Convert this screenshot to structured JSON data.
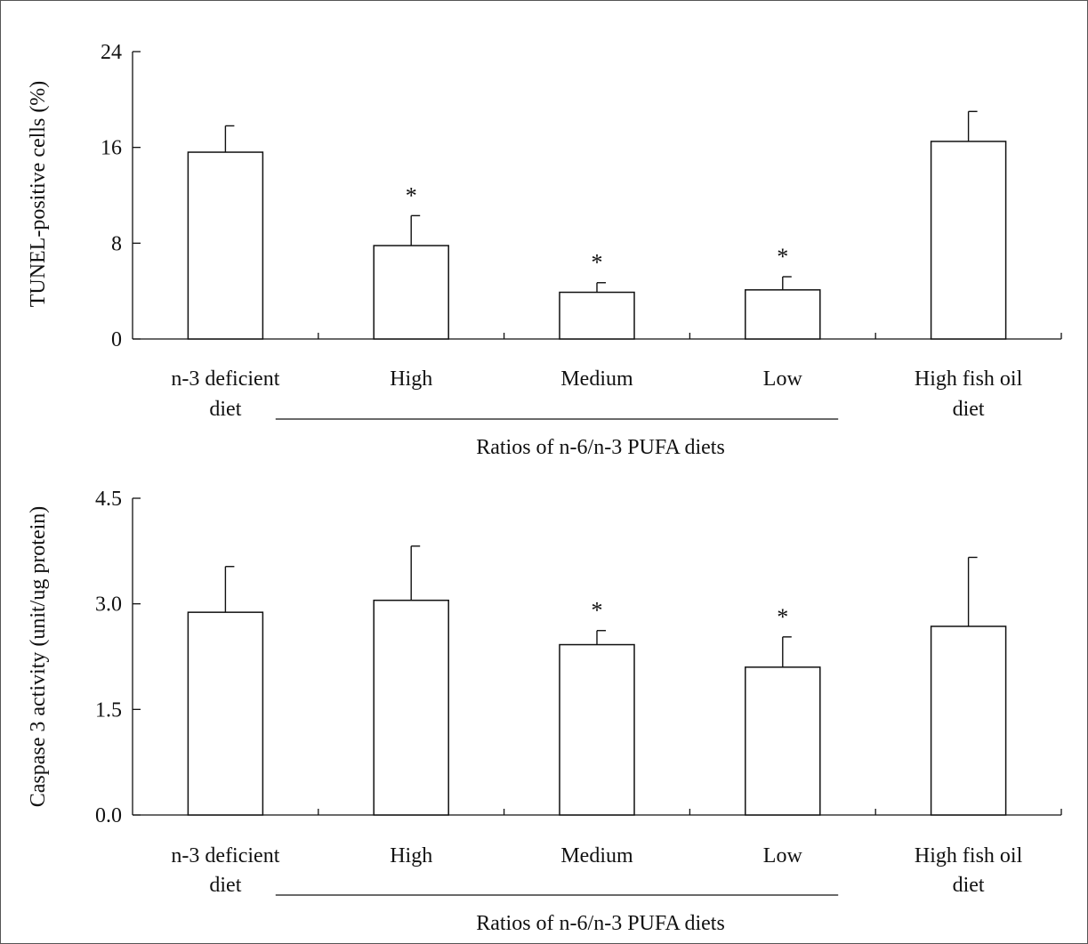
{
  "chart_data": [
    {
      "type": "bar",
      "ylabel": "TUNEL-positive cells (%)",
      "yticks": [
        "0",
        "8",
        "16",
        "24"
      ],
      "ylim": [
        0,
        24
      ],
      "categories": [
        [
          "n-3 deficient",
          "diet"
        ],
        [
          "High"
        ],
        [
          "Medium"
        ],
        [
          "Low"
        ],
        [
          "High fish oil",
          "diet"
        ]
      ],
      "group_label": "Ratios of n-6/n-3 PUFA diets",
      "values": [
        15.6,
        7.8,
        3.9,
        4.1,
        16.5
      ],
      "errors": [
        2.2,
        2.5,
        0.8,
        1.1,
        2.5
      ],
      "significance": [
        "",
        "*",
        "*",
        "*",
        ""
      ],
      "grid": false,
      "legend": "none"
    },
    {
      "type": "bar",
      "ylabel": "Caspase 3 activity (unit/ug protein)",
      "yticks": [
        "0.0",
        "1.5",
        "3.0",
        "4.5"
      ],
      "ylim": [
        0,
        4.5
      ],
      "categories": [
        [
          "n-3 deficient",
          "diet"
        ],
        [
          "High"
        ],
        [
          "Medium"
        ],
        [
          "Low"
        ],
        [
          "High fish oil",
          "diet"
        ]
      ],
      "group_label": "Ratios of n-6/n-3 PUFA diets",
      "values": [
        2.88,
        3.05,
        2.42,
        2.1,
        2.68
      ],
      "errors": [
        0.65,
        0.77,
        0.2,
        0.43,
        0.98
      ],
      "significance": [
        "",
        "",
        "*",
        "*",
        ""
      ],
      "grid": false,
      "legend": "none"
    }
  ],
  "colors": {
    "bar_fill": "#ffffff",
    "stroke": "#111111",
    "frame": "#555555"
  }
}
